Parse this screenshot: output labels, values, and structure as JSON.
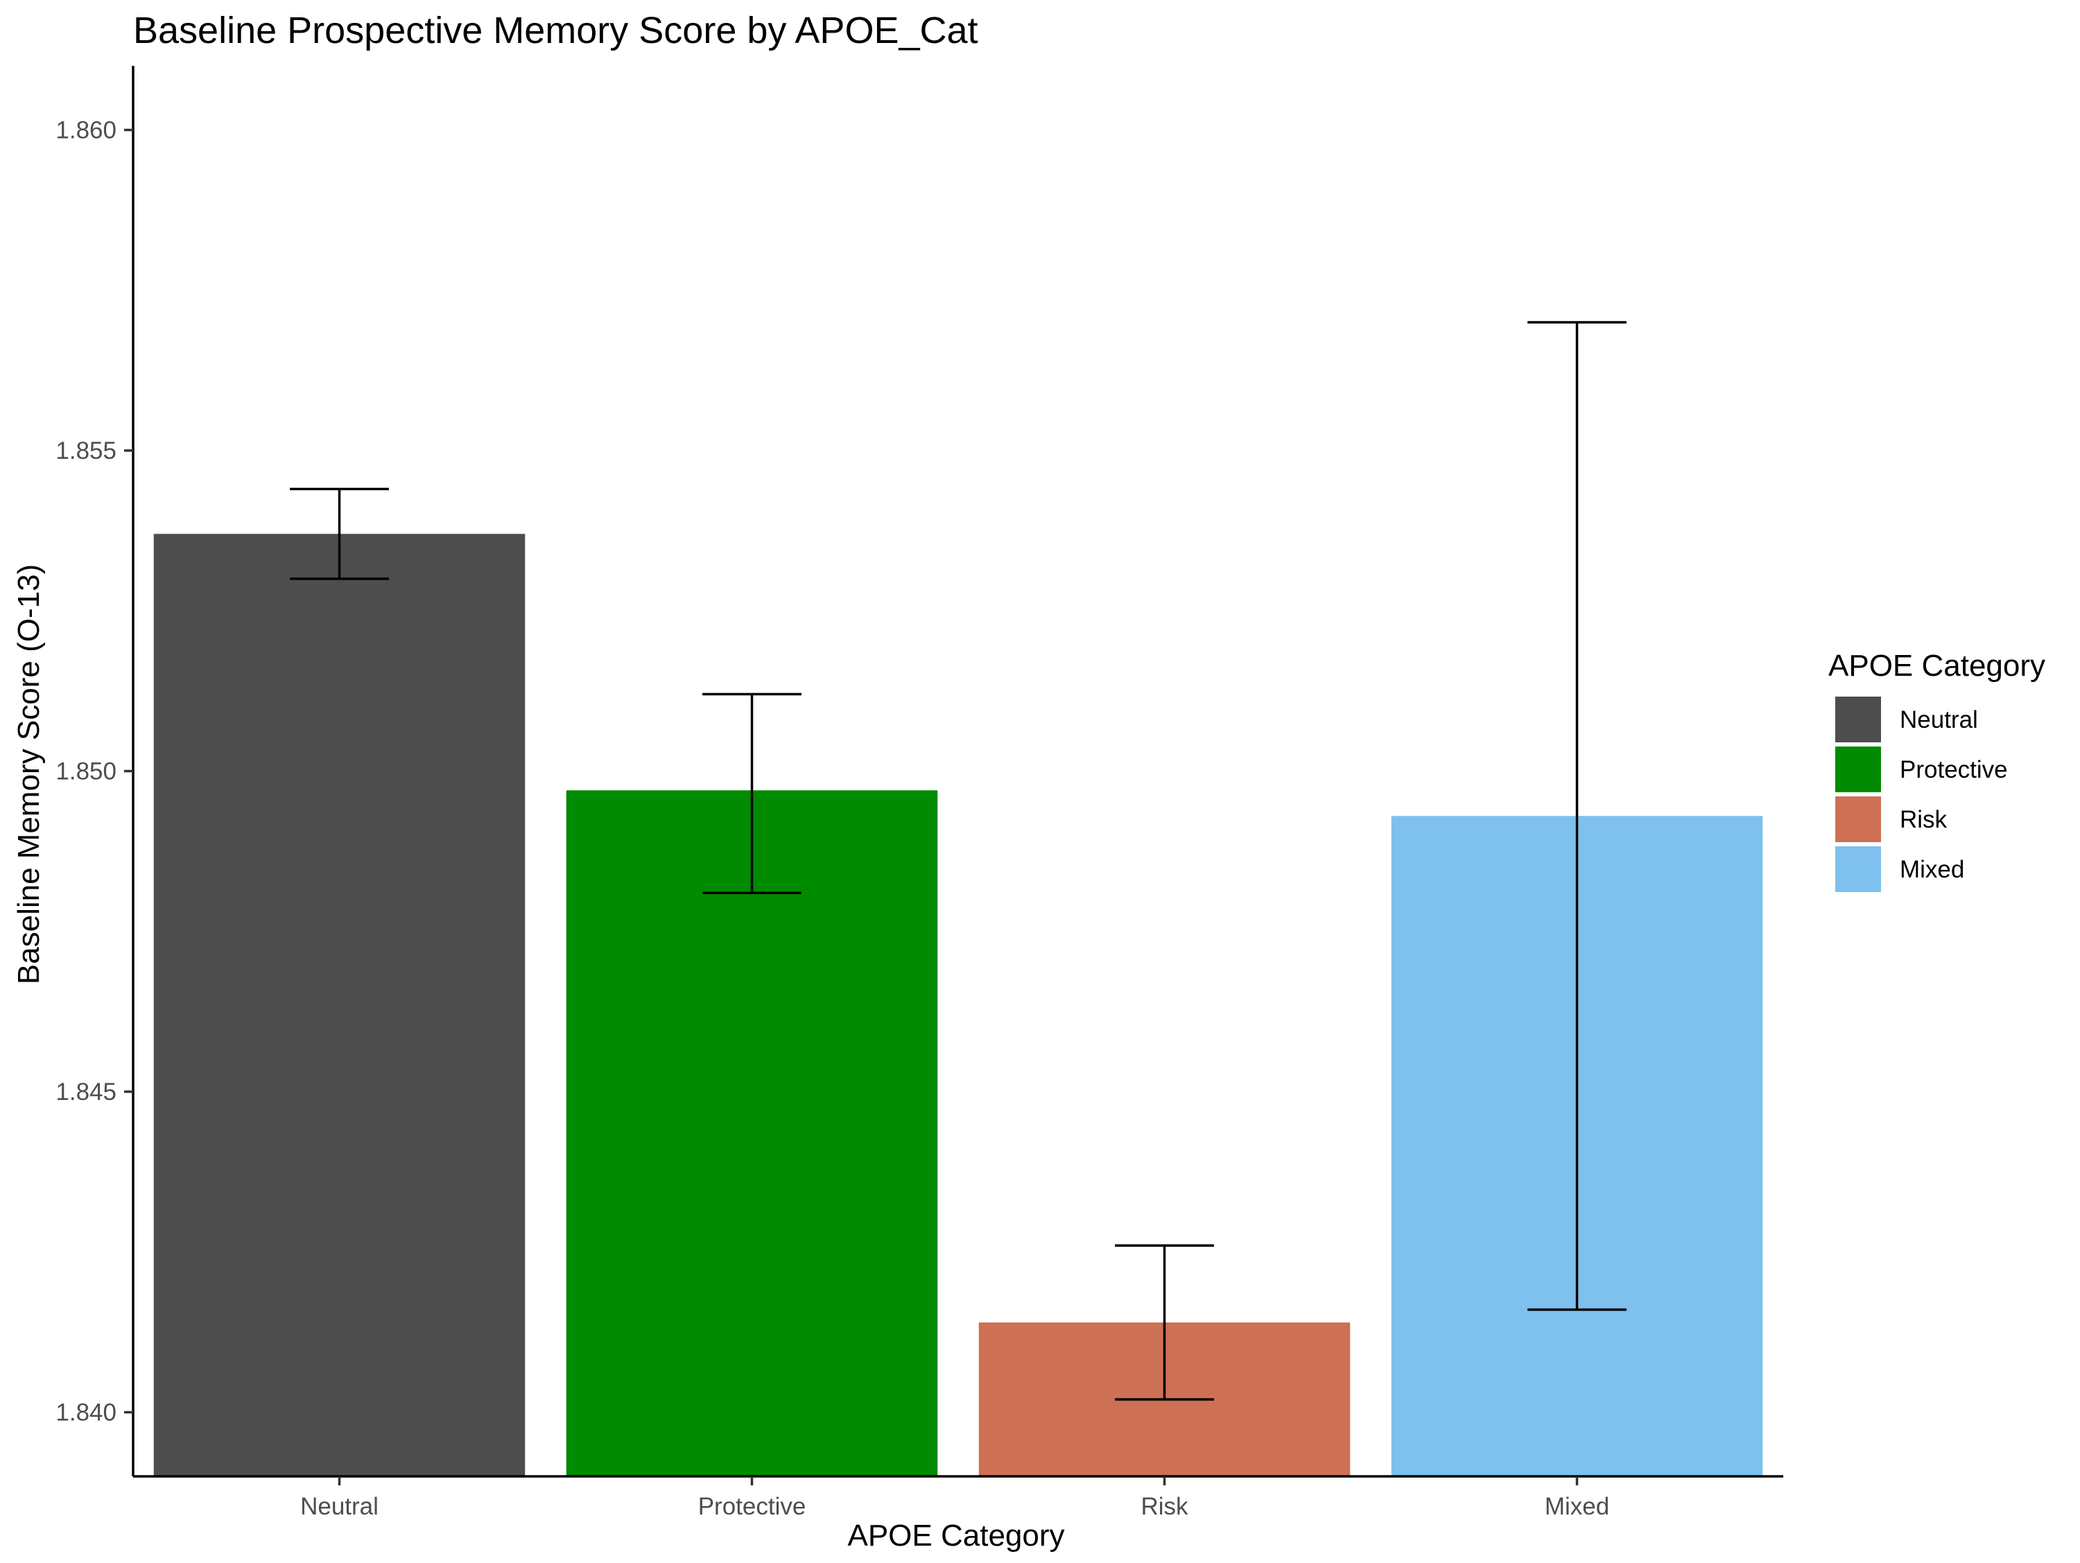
{
  "chart_data": {
    "type": "bar",
    "title": "Baseline Prospective Memory Score by APOE_Cat",
    "xlabel": "APOE Category",
    "ylabel": "Baseline Memory Score (O-13)",
    "categories": [
      "Neutral",
      "Protective",
      "Risk",
      "Mixed"
    ],
    "values": [
      1.8537,
      1.8497,
      1.8414,
      1.8493
    ],
    "error_lower": [
      1.853,
      1.8481,
      1.8402,
      1.8416
    ],
    "error_upper": [
      1.8544,
      1.8512,
      1.8426,
      1.857
    ],
    "colors": [
      "#4D4D4D",
      "#008B00",
      "#CD7054",
      "#7EC0EE"
    ],
    "ylim": [
      1.839,
      1.861
    ],
    "yticks": [
      1.84,
      1.845,
      1.85,
      1.855,
      1.86
    ],
    "ytick_labels": [
      "1.840",
      "1.845",
      "1.850",
      "1.855",
      "1.860"
    ],
    "grid": false,
    "legend": {
      "title": "APOE Category",
      "position": "right",
      "entries": [
        "Neutral",
        "Protective",
        "Risk",
        "Mixed"
      ]
    }
  }
}
